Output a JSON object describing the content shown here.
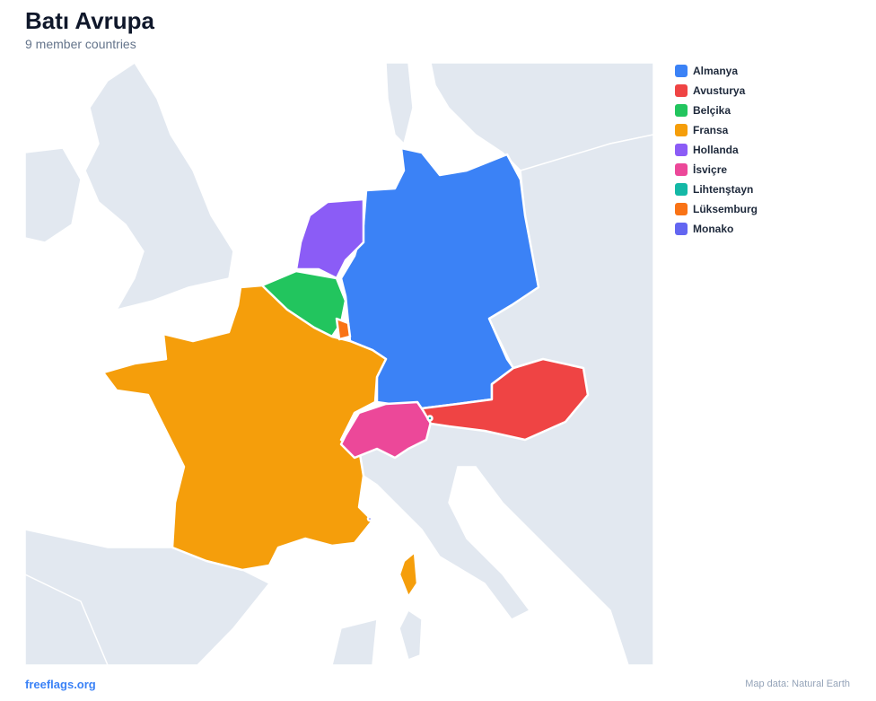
{
  "header": {
    "title": "Batı Avrupa",
    "subtitle": "9 member countries"
  },
  "legend": [
    {
      "name": "Almanya",
      "color": "#3b82f6"
    },
    {
      "name": "Avusturya",
      "color": "#ef4444"
    },
    {
      "name": "Belçika",
      "color": "#22c55e"
    },
    {
      "name": "Fransa",
      "color": "#f59e0b"
    },
    {
      "name": "Hollanda",
      "color": "#8b5cf6"
    },
    {
      "name": "İsviçre",
      "color": "#ec4899"
    },
    {
      "name": "Lihtenştayn",
      "color": "#14b8a6"
    },
    {
      "name": "Lüksemburg",
      "color": "#f97316"
    },
    {
      "name": "Monako",
      "color": "#6366f1"
    }
  ],
  "footer": {
    "source": "freeflags.org",
    "attribution": "Map data: Natural Earth"
  }
}
